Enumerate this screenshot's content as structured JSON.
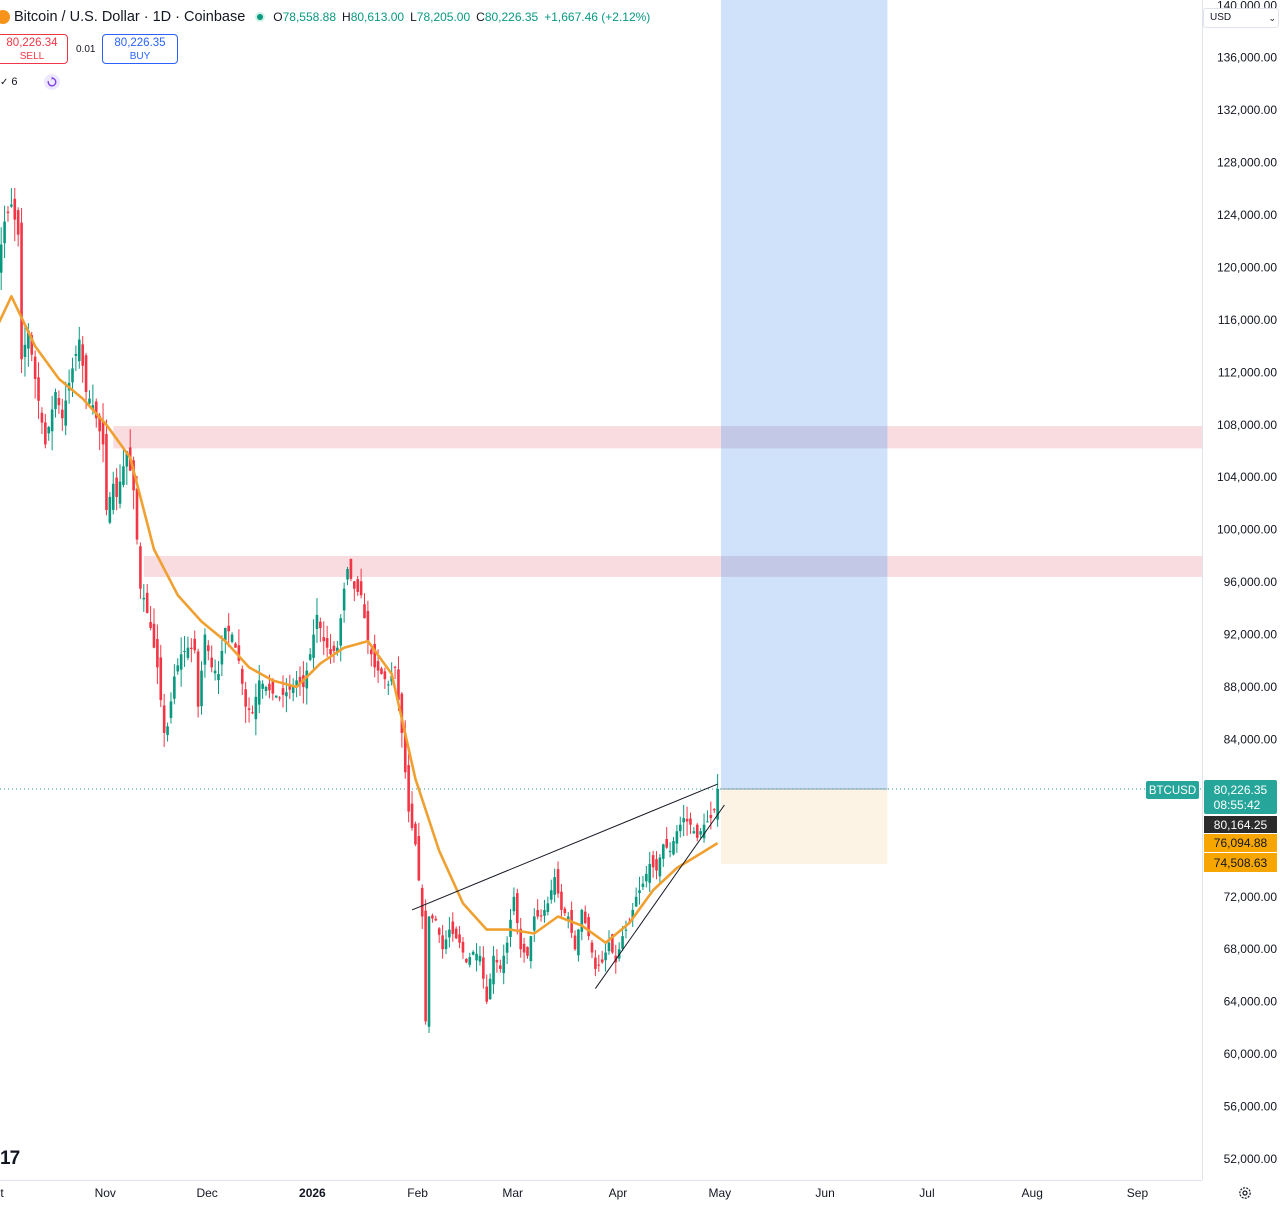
{
  "header": {
    "symbol_title": "Bitcoin / U.S. Dollar · 1D · Coinbase",
    "open_label": "O",
    "open": "78,558.88",
    "high_label": "H",
    "high": "80,613.00",
    "low_label": "L",
    "low": "78,205.00",
    "close_label": "C",
    "close": "80,226.35",
    "change": "+1,667.46 (+2.12%)"
  },
  "trade": {
    "sell_price": "80,226.34",
    "sell_label": "SELL",
    "spread": "0.01",
    "buy_price": "80,226.35",
    "buy_label": "BUY"
  },
  "indicators": {
    "count": "6"
  },
  "currency": "USD",
  "watermark": "17",
  "price_scale": {
    "ticks": [
      "140,000.00",
      "136,000.00",
      "132,000.00",
      "128,000.00",
      "124,000.00",
      "120,000.00",
      "116,000.00",
      "112,000.00",
      "108,000.00",
      "104,000.00",
      "100,000.00",
      "96,000.00",
      "92,000.00",
      "88,000.00",
      "84,000.00",
      "72,000.00",
      "68,000.00",
      "64,000.00",
      "60,000.00",
      "56,000.00",
      "52,000.00"
    ],
    "badges": {
      "symbol": "BTCUSD",
      "last_price": "80,226.35",
      "countdown": "08:55:42",
      "price_2": "80,164.25",
      "price_3": "76,094.88",
      "price_4": "74,508.63"
    }
  },
  "time_scale": {
    "labels": [
      "t",
      "Nov",
      "Dec",
      "2026",
      "Feb",
      "Mar",
      "Apr",
      "May",
      "Jun",
      "Jul",
      "Aug",
      "Sep"
    ]
  },
  "chart_data": {
    "type": "candlestick",
    "symbol": "BTCUSD",
    "timeframe": "1D",
    "y_range": [
      50400,
      140400
    ],
    "x_range": [
      "2025-10-01",
      "2026-09-20"
    ],
    "price_ticks": [
      140000,
      136000,
      132000,
      128000,
      124000,
      120000,
      116000,
      112000,
      108000,
      104000,
      100000,
      96000,
      92000,
      88000,
      84000,
      72000,
      68000,
      64000,
      60000,
      56000,
      52000
    ],
    "series": [
      {
        "name": "BTCUSD",
        "kind": "candles",
        "color_up": "#089981",
        "color_down": "#f23645",
        "close_path": [
          [
            "2025-10-01",
            116500
          ],
          [
            "2025-10-05",
            123500
          ],
          [
            "2025-10-07",
            124800
          ],
          [
            "2025-10-09",
            122500
          ],
          [
            "2025-10-10",
            113000
          ],
          [
            "2025-10-12",
            115200
          ],
          [
            "2025-10-14",
            111500
          ],
          [
            "2025-10-17",
            106500
          ],
          [
            "2025-10-20",
            110500
          ],
          [
            "2025-10-22",
            108500
          ],
          [
            "2025-10-24",
            111200
          ],
          [
            "2025-10-27",
            114500
          ],
          [
            "2025-10-29",
            110500
          ],
          [
            "2025-10-31",
            109500
          ],
          [
            "2025-11-03",
            106500
          ],
          [
            "2025-11-04",
            101500
          ],
          [
            "2025-11-06",
            103500
          ],
          [
            "2025-11-07",
            102500
          ],
          [
            "2025-11-10",
            106000
          ],
          [
            "2025-11-12",
            103000
          ],
          [
            "2025-11-14",
            95500
          ],
          [
            "2025-11-15",
            94800
          ],
          [
            "2025-11-17",
            92500
          ],
          [
            "2025-11-19",
            89500
          ],
          [
            "2025-11-21",
            84500
          ],
          [
            "2025-11-22",
            85000
          ],
          [
            "2025-11-24",
            88800
          ],
          [
            "2025-11-26",
            90500
          ],
          [
            "2025-11-28",
            91000
          ],
          [
            "2025-11-30",
            90800
          ],
          [
            "2025-12-01",
            86500
          ],
          [
            "2025-12-03",
            92000
          ],
          [
            "2025-12-05",
            89500
          ],
          [
            "2025-12-07",
            89000
          ],
          [
            "2025-12-09",
            92500
          ],
          [
            "2025-12-11",
            92000
          ],
          [
            "2025-12-13",
            90000
          ],
          [
            "2025-12-15",
            86500
          ],
          [
            "2025-12-17",
            86000
          ],
          [
            "2025-12-19",
            88500
          ],
          [
            "2025-12-21",
            88000
          ],
          [
            "2025-12-23",
            87500
          ],
          [
            "2025-12-25",
            87200
          ],
          [
            "2025-12-28",
            87800
          ],
          [
            "2025-12-30",
            88500
          ],
          [
            "2026-01-01",
            88000
          ],
          [
            "2026-01-03",
            90500
          ],
          [
            "2026-01-05",
            93500
          ],
          [
            "2026-01-07",
            91500
          ],
          [
            "2026-01-09",
            90500
          ],
          [
            "2026-01-11",
            91000
          ],
          [
            "2026-01-13",
            95500
          ],
          [
            "2026-01-14",
            97000
          ],
          [
            "2026-01-16",
            95500
          ],
          [
            "2026-01-18",
            95000
          ],
          [
            "2026-01-20",
            91500
          ],
          [
            "2026-01-22",
            89500
          ],
          [
            "2026-01-24",
            89000
          ],
          [
            "2026-01-26",
            88200
          ],
          [
            "2026-01-28",
            89500
          ],
          [
            "2026-01-30",
            84500
          ],
          [
            "2026-02-01",
            78500
          ],
          [
            "2026-02-03",
            76000
          ],
          [
            "2026-02-05",
            70500
          ],
          [
            "2026-02-06",
            62500
          ],
          [
            "2026-02-07",
            70500
          ],
          [
            "2026-02-09",
            70200
          ],
          [
            "2026-02-11",
            68000
          ],
          [
            "2026-02-13",
            69500
          ],
          [
            "2026-02-16",
            68500
          ],
          [
            "2026-02-18",
            67000
          ],
          [
            "2026-02-20",
            67800
          ],
          [
            "2026-02-22",
            67500
          ],
          [
            "2026-02-24",
            64000
          ],
          [
            "2026-02-26",
            67500
          ],
          [
            "2026-02-28",
            66500
          ],
          [
            "2026-03-02",
            68500
          ],
          [
            "2026-03-04",
            72000
          ],
          [
            "2026-03-06",
            68000
          ],
          [
            "2026-03-08",
            67500
          ],
          [
            "2026-03-10",
            70500
          ],
          [
            "2026-03-12",
            70500
          ],
          [
            "2026-03-14",
            71500
          ],
          [
            "2026-03-16",
            73500
          ],
          [
            "2026-03-18",
            71000
          ],
          [
            "2026-03-20",
            70500
          ],
          [
            "2026-03-22",
            68000
          ],
          [
            "2026-03-24",
            71000
          ],
          [
            "2026-03-26",
            69000
          ],
          [
            "2026-03-28",
            66500
          ],
          [
            "2026-03-30",
            67000
          ],
          [
            "2026-04-01",
            68500
          ],
          [
            "2026-04-03",
            67000
          ],
          [
            "2026-04-05",
            69000
          ],
          [
            "2026-04-07",
            70000
          ],
          [
            "2026-04-09",
            72000
          ],
          [
            "2026-04-11",
            73000
          ],
          [
            "2026-04-13",
            74500
          ],
          [
            "2026-04-15",
            74000
          ],
          [
            "2026-04-17",
            76000
          ],
          [
            "2026-04-19",
            75500
          ],
          [
            "2026-04-21",
            77000
          ],
          [
            "2026-04-23",
            78000
          ],
          [
            "2026-04-25",
            77500
          ],
          [
            "2026-04-27",
            76500
          ],
          [
            "2026-04-29",
            77500
          ],
          [
            "2026-05-01",
            78000
          ],
          [
            "2026-05-02",
            78600
          ],
          [
            "2026-05-03",
            80226.35
          ]
        ]
      },
      {
        "name": "Moving average",
        "kind": "line",
        "color": "#f0a030",
        "points": [
          [
            "2025-10-01",
            114500
          ],
          [
            "2025-10-07",
            117800
          ],
          [
            "2025-10-14",
            114000
          ],
          [
            "2025-10-21",
            111500
          ],
          [
            "2025-10-28",
            110000
          ],
          [
            "2025-11-04",
            108000
          ],
          [
            "2025-11-11",
            105500
          ],
          [
            "2025-11-18",
            98500
          ],
          [
            "2025-11-25",
            95000
          ],
          [
            "2025-12-02",
            93000
          ],
          [
            "2025-12-09",
            91500
          ],
          [
            "2025-12-16",
            89500
          ],
          [
            "2025-12-23",
            88500
          ],
          [
            "2025-12-30",
            88000
          ],
          [
            "2026-01-06",
            89800
          ],
          [
            "2026-01-13",
            91000
          ],
          [
            "2026-01-20",
            91500
          ],
          [
            "2026-01-27",
            89000
          ],
          [
            "2026-02-03",
            81000
          ],
          [
            "2026-02-10",
            75500
          ],
          [
            "2026-02-17",
            71500
          ],
          [
            "2026-02-24",
            69500
          ],
          [
            "2026-03-03",
            69500
          ],
          [
            "2026-03-10",
            69200
          ],
          [
            "2026-03-17",
            70500
          ],
          [
            "2026-03-24",
            69800
          ],
          [
            "2026-03-31",
            68500
          ],
          [
            "2026-04-07",
            70000
          ],
          [
            "2026-04-14",
            72500
          ],
          [
            "2026-04-21",
            74200
          ],
          [
            "2026-04-28",
            75300
          ],
          [
            "2026-05-03",
            76094.88
          ]
        ]
      }
    ],
    "trendlines": [
      {
        "name": "upper-trendline",
        "from": [
          "2026-02-02",
          71000
        ],
        "to": [
          "2026-05-03",
          80600
        ]
      },
      {
        "name": "lower-trendline",
        "from": [
          "2026-03-28",
          65000
        ],
        "to": [
          "2026-05-05",
          79000
        ]
      }
    ],
    "zones": [
      {
        "name": "resistance-zone-upper",
        "price_from": 106200,
        "price_to": 107900,
        "date_from": "2025-11-06",
        "color": "#f8dcdf"
      },
      {
        "name": "resistance-zone-lower",
        "price_from": 96400,
        "price_to": 98000,
        "date_from": "2025-11-15",
        "color": "#f8dcdf"
      }
    ],
    "long_position": {
      "entry": 80226.35,
      "target": 140400,
      "stop": 74508.63,
      "date_from": "2026-05-04",
      "date_to": "2026-06-22",
      "profit_color": "#cfe2fa",
      "loss_color": "#fdf3e4"
    },
    "last_price": 80226.35
  }
}
